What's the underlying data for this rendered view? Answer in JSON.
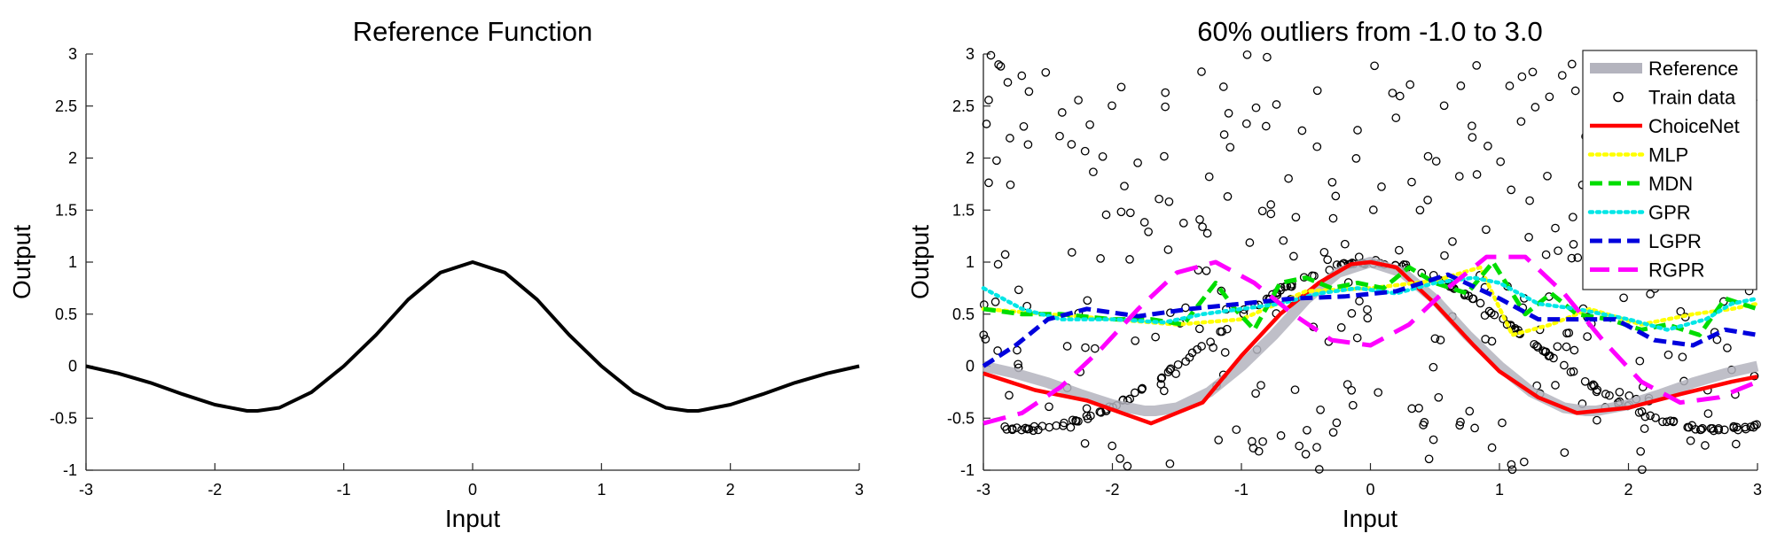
{
  "chart_data": [
    {
      "type": "line",
      "title": "Reference Function",
      "xlabel": "Input",
      "ylabel": "Output",
      "xlim": [
        -3,
        3
      ],
      "ylim": [
        -1,
        3
      ],
      "xticks": [
        "-3",
        "-2",
        "-1",
        "0",
        "1",
        "2",
        "3"
      ],
      "yticks": [
        "-1",
        "-0.5",
        "0",
        "0.5",
        "1",
        "1.5",
        "2",
        "2.5",
        "3"
      ],
      "grid": false,
      "series": [
        {
          "color": "#000000",
          "x": [
            -3.0,
            -2.75,
            -2.5,
            -2.25,
            -2.0,
            -1.75,
            -1.67,
            -1.5,
            -1.25,
            -1.0,
            -0.75,
            -0.5,
            -0.25,
            0.0,
            0.25,
            0.5,
            0.75,
            1.0,
            1.25,
            1.5,
            1.67,
            1.75,
            2.0,
            2.25,
            2.5,
            2.75,
            3.0
          ],
          "y": [
            0.0,
            -0.07,
            -0.16,
            -0.27,
            -0.37,
            -0.43,
            -0.43,
            -0.4,
            -0.25,
            0.0,
            0.3,
            0.64,
            0.9,
            1.0,
            0.9,
            0.64,
            0.3,
            0.0,
            -0.25,
            -0.4,
            -0.43,
            -0.43,
            -0.37,
            -0.27,
            -0.16,
            -0.07,
            0.0
          ]
        }
      ]
    },
    {
      "type": "line",
      "title": "60% outliers from -1.0 to 3.0",
      "xlabel": "Input",
      "ylabel": "Output",
      "xlim": [
        -3,
        3
      ],
      "ylim": [
        -1,
        3
      ],
      "xticks": [
        "-3",
        "-2",
        "-1",
        "0",
        "1",
        "2",
        "3"
      ],
      "yticks": [
        "-1",
        "-0.5",
        "0",
        "0.5",
        "1",
        "1.5",
        "2",
        "2.5",
        "3"
      ],
      "grid": false,
      "legend_position": "top-right",
      "train_data_count": 500,
      "outlier_fraction": 0.6,
      "outlier_range": [
        -1.0,
        3.0
      ],
      "series": [
        {
          "name": "Reference",
          "color": "#b4b4be",
          "style": "solid-thick",
          "x": [
            -3.0,
            -2.75,
            -2.5,
            -2.25,
            -2.0,
            -1.75,
            -1.67,
            -1.5,
            -1.25,
            -1.0,
            -0.75,
            -0.5,
            -0.25,
            0.0,
            0.25,
            0.5,
            0.75,
            1.0,
            1.25,
            1.5,
            1.67,
            1.75,
            2.0,
            2.25,
            2.5,
            2.75,
            3.0
          ],
          "y": [
            0.0,
            -0.07,
            -0.16,
            -0.27,
            -0.37,
            -0.43,
            -0.43,
            -0.4,
            -0.25,
            0.0,
            0.3,
            0.64,
            0.9,
            1.0,
            0.9,
            0.64,
            0.3,
            0.0,
            -0.25,
            -0.4,
            -0.43,
            -0.43,
            -0.37,
            -0.27,
            -0.16,
            -0.07,
            0.0
          ]
        },
        {
          "name": "Train data",
          "color": "#000000",
          "style": "circle-marker"
        },
        {
          "name": "ChoiceNet",
          "color": "#ff0000",
          "style": "solid",
          "x": [
            -3.0,
            -2.6,
            -2.2,
            -1.7,
            -1.3,
            -1.0,
            -0.7,
            -0.4,
            -0.15,
            0.0,
            0.2,
            0.5,
            0.8,
            1.0,
            1.3,
            1.6,
            2.0,
            2.4,
            2.8,
            3.0
          ],
          "y": [
            -0.07,
            -0.23,
            -0.33,
            -0.55,
            -0.35,
            0.1,
            0.5,
            0.8,
            0.98,
            1.0,
            0.95,
            0.6,
            0.2,
            -0.05,
            -0.3,
            -0.45,
            -0.4,
            -0.27,
            -0.15,
            -0.1
          ]
        },
        {
          "name": "MLP",
          "color": "#ffff00",
          "style": "dotted",
          "x": [
            -3.0,
            -2.5,
            -2.0,
            -1.5,
            -1.0,
            -0.5,
            0.0,
            0.5,
            0.85,
            1.1,
            1.4,
            1.7,
            2.1,
            2.5,
            2.8,
            3.0
          ],
          "y": [
            0.55,
            0.5,
            0.45,
            0.4,
            0.45,
            0.72,
            0.75,
            0.82,
            0.95,
            0.3,
            0.4,
            0.55,
            0.4,
            0.5,
            0.55,
            0.6
          ]
        },
        {
          "name": "MDN",
          "color": "#00dd00",
          "style": "dashed",
          "x": [
            -3.0,
            -2.7,
            -2.4,
            -2.0,
            -1.7,
            -1.45,
            -1.2,
            -1.05,
            -0.9,
            -0.7,
            -0.5,
            -0.3,
            -0.1,
            0.1,
            0.3,
            0.5,
            0.75,
            0.95,
            1.2,
            1.4,
            1.6,
            1.85,
            2.1,
            2.3,
            2.55,
            2.75,
            3.0
          ],
          "y": [
            0.55,
            0.5,
            0.5,
            0.45,
            0.45,
            0.4,
            0.8,
            0.55,
            0.35,
            0.8,
            0.85,
            0.75,
            0.8,
            0.75,
            0.95,
            0.8,
            0.7,
            1.0,
            0.5,
            0.7,
            0.5,
            0.45,
            0.35,
            0.4,
            0.3,
            0.65,
            0.55
          ]
        },
        {
          "name": "GPR",
          "color": "#00e6e6",
          "style": "dotted",
          "x": [
            -3.0,
            -2.7,
            -2.4,
            -2.0,
            -1.6,
            -1.3,
            -1.0,
            -0.7,
            -0.4,
            -0.1,
            0.2,
            0.5,
            0.8,
            1.0,
            1.3,
            1.6,
            2.0,
            2.3,
            2.6,
            2.8,
            3.0
          ],
          "y": [
            0.75,
            0.55,
            0.45,
            0.45,
            0.42,
            0.5,
            0.55,
            0.6,
            0.7,
            0.75,
            0.7,
            0.8,
            0.85,
            0.8,
            0.6,
            0.55,
            0.45,
            0.35,
            0.45,
            0.6,
            0.65
          ]
        },
        {
          "name": "LGPR",
          "color": "#0000dd",
          "style": "dashed",
          "x": [
            -3.0,
            -2.75,
            -2.5,
            -2.2,
            -1.8,
            -1.4,
            -1.0,
            -0.6,
            -0.2,
            0.2,
            0.6,
            1.0,
            1.3,
            1.6,
            1.9,
            2.2,
            2.5,
            2.75,
            3.0
          ],
          "y": [
            0.0,
            0.2,
            0.45,
            0.55,
            0.48,
            0.55,
            0.6,
            0.65,
            0.67,
            0.72,
            0.88,
            0.65,
            0.45,
            0.45,
            0.45,
            0.25,
            0.2,
            0.35,
            0.3
          ]
        },
        {
          "name": "RGPR",
          "color": "#ff00ff",
          "style": "long-dashed",
          "x": [
            -3.0,
            -2.7,
            -2.4,
            -2.1,
            -1.8,
            -1.5,
            -1.2,
            -0.9,
            -0.6,
            -0.3,
            0.0,
            0.3,
            0.6,
            0.9,
            1.2,
            1.5,
            1.8,
            2.1,
            2.4,
            2.7,
            3.0
          ],
          "y": [
            -0.55,
            -0.45,
            -0.2,
            0.15,
            0.55,
            0.9,
            1.0,
            0.8,
            0.5,
            0.25,
            0.2,
            0.4,
            0.75,
            1.05,
            1.05,
            0.7,
            0.25,
            -0.15,
            -0.35,
            -0.3,
            -0.15
          ]
        }
      ]
    }
  ]
}
